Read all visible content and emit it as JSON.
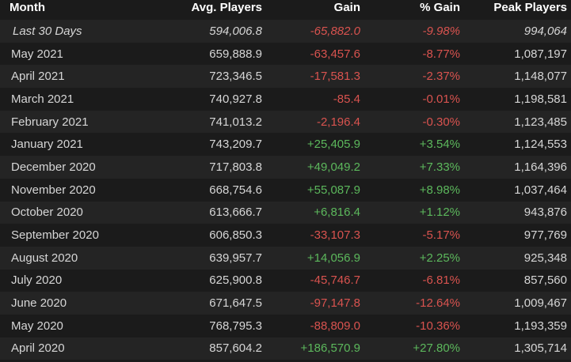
{
  "colors": {
    "negative": "#d9534f",
    "positive": "#5cb85c",
    "header": "#ffffff",
    "text": "#d6d6d6"
  },
  "table": {
    "headers": [
      "Month",
      "Avg. Players",
      "Gain",
      "% Gain",
      "Peak Players"
    ],
    "rows": [
      {
        "month": "Last 30 Days",
        "avg": "594,006.8",
        "gain": "-65,882.0",
        "pct": "-9.98%",
        "peak": "994,064",
        "trend": "neg",
        "summary": true
      },
      {
        "month": "May 2021",
        "avg": "659,888.9",
        "gain": "-63,457.6",
        "pct": "-8.77%",
        "peak": "1,087,197",
        "trend": "neg"
      },
      {
        "month": "April 2021",
        "avg": "723,346.5",
        "gain": "-17,581.3",
        "pct": "-2.37%",
        "peak": "1,148,077",
        "trend": "neg"
      },
      {
        "month": "March 2021",
        "avg": "740,927.8",
        "gain": "-85.4",
        "pct": "-0.01%",
        "peak": "1,198,581",
        "trend": "neg"
      },
      {
        "month": "February 2021",
        "avg": "741,013.2",
        "gain": "-2,196.4",
        "pct": "-0.30%",
        "peak": "1,123,485",
        "trend": "neg"
      },
      {
        "month": "January 2021",
        "avg": "743,209.7",
        "gain": "+25,405.9",
        "pct": "+3.54%",
        "peak": "1,124,553",
        "trend": "pos"
      },
      {
        "month": "December 2020",
        "avg": "717,803.8",
        "gain": "+49,049.2",
        "pct": "+7.33%",
        "peak": "1,164,396",
        "trend": "pos"
      },
      {
        "month": "November 2020",
        "avg": "668,754.6",
        "gain": "+55,087.9",
        "pct": "+8.98%",
        "peak": "1,037,464",
        "trend": "pos"
      },
      {
        "month": "October 2020",
        "avg": "613,666.7",
        "gain": "+6,816.4",
        "pct": "+1.12%",
        "peak": "943,876",
        "trend": "pos"
      },
      {
        "month": "September 2020",
        "avg": "606,850.3",
        "gain": "-33,107.3",
        "pct": "-5.17%",
        "peak": "977,769",
        "trend": "neg"
      },
      {
        "month": "August 2020",
        "avg": "639,957.7",
        "gain": "+14,056.9",
        "pct": "+2.25%",
        "peak": "925,348",
        "trend": "pos"
      },
      {
        "month": "July 2020",
        "avg": "625,900.8",
        "gain": "-45,746.7",
        "pct": "-6.81%",
        "peak": "857,560",
        "trend": "neg"
      },
      {
        "month": "June 2020",
        "avg": "671,647.5",
        "gain": "-97,147.8",
        "pct": "-12.64%",
        "peak": "1,009,467",
        "trend": "neg"
      },
      {
        "month": "May 2020",
        "avg": "768,795.3",
        "gain": "-88,809.0",
        "pct": "-10.36%",
        "peak": "1,193,359",
        "trend": "neg"
      },
      {
        "month": "April 2020",
        "avg": "857,604.2",
        "gain": "+186,570.9",
        "pct": "+27.80%",
        "peak": "1,305,714",
        "trend": "pos"
      }
    ]
  }
}
